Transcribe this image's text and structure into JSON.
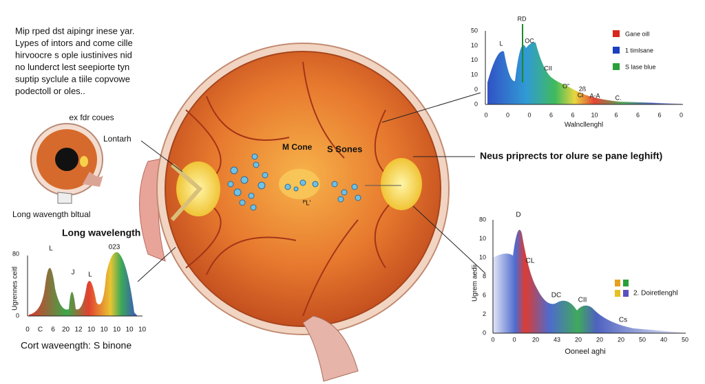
{
  "intro": {
    "lines": [
      "Mip rped dst aipingr inese yar.",
      "Lypes of intors and come cille",
      "hirvoocre s ople iustinives nid",
      "no lunderct lest seepiorte tyn",
      "suptip syclule a tiile copvowe",
      "podectoll or oles.."
    ]
  },
  "small_eye": {
    "caption": "ex fdr coues"
  },
  "callouts": {
    "left": "Lontarh",
    "right": "Neus priprects tor olure se pane leghift)"
  },
  "labels": {
    "long_wavength": "Long wavength bltual",
    "long_wavelength": "Long wavelength",
    "m_cone": "M Cone",
    "s_sones": "S Sones",
    "center_mark": "ᴾL’"
  },
  "chart_left": {
    "peaks": [
      "L",
      "J",
      "L",
      "023"
    ],
    "y_label": "Ugrennes ceitl",
    "y_ticks": [
      "80",
      "0"
    ],
    "x_ticks": [
      "0",
      "C",
      "6",
      "20",
      "12",
      "10",
      "10",
      "10",
      "10",
      "10"
    ],
    "caption": "Cort waveength: S binone"
  },
  "chart_top_right": {
    "peaks": [
      "RD",
      "L",
      "OC",
      "CII",
      "O”",
      "2ß",
      "Cl",
      "A-A",
      "C."
    ],
    "y_ticks": [
      "50",
      "10",
      "10",
      "10",
      "0",
      "0"
    ],
    "x_ticks": [
      "0",
      "0",
      "0",
      "6",
      "6",
      "10",
      "6",
      "6",
      "6",
      "0"
    ],
    "x_label": "Walncllenghl",
    "legend": [
      "Gane oill",
      "1 timlsane",
      "S lase blue"
    ]
  },
  "chart_bottom_right": {
    "peaks": [
      "D",
      "CL",
      "DC",
      "CII",
      "Cs"
    ],
    "y_label": "Ugrem aedii",
    "y_ticks": [
      "80",
      "10",
      "10",
      "8",
      "6",
      "2",
      "0"
    ],
    "x_ticks": [
      "0",
      "0",
      "20",
      "43",
      "20",
      "20",
      "20",
      "50",
      "40",
      "50"
    ],
    "x_label": "Ooneel aghi",
    "legend": [
      "2. Doiretlenghl"
    ]
  }
}
